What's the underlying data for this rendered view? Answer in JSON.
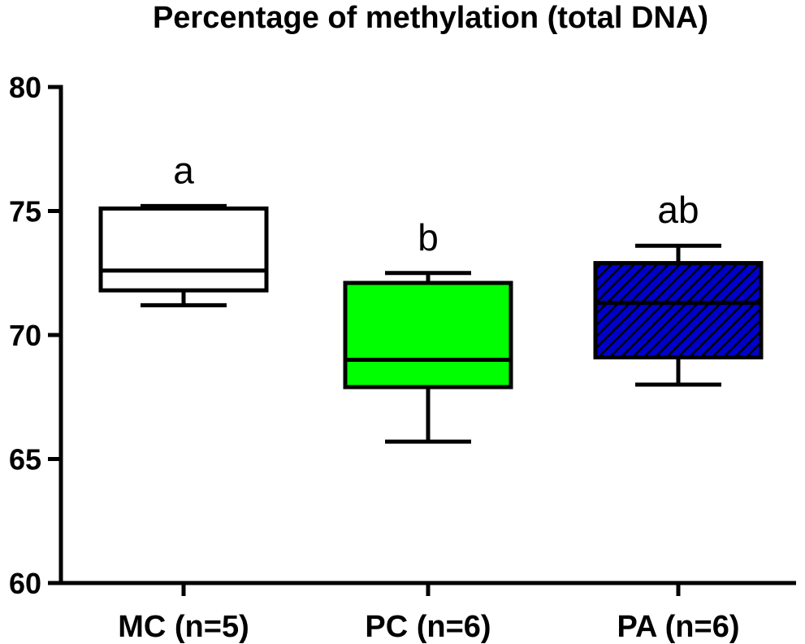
{
  "chart_data": {
    "type": "box",
    "title": "Percentage of methylation (total DNA)",
    "xlabel": "",
    "ylabel": "",
    "ylim": [
      60,
      80
    ],
    "yticks": [
      60,
      65,
      70,
      75,
      80
    ],
    "grid": false,
    "categories": [
      "MC (n=5)",
      "PC (n=6)",
      "PA (n=6)"
    ],
    "boxes": [
      {
        "category": "MC (n=5)",
        "min": 71.2,
        "q1": 71.8,
        "median": 72.6,
        "q3": 75.1,
        "max": 75.2,
        "fill": "#ffffff",
        "pattern": "none",
        "annotation": "a"
      },
      {
        "category": "PC (n=6)",
        "min": 65.7,
        "q1": 67.9,
        "median": 69.0,
        "q3": 72.1,
        "max": 72.5,
        "fill": "#00ff00",
        "pattern": "none",
        "annotation": "b"
      },
      {
        "category": "PA (n=6)",
        "min": 68.0,
        "q1": 69.1,
        "median": 71.3,
        "q3": 72.9,
        "max": 73.6,
        "fill": "#0000cc",
        "pattern": "diagonal-hatch",
        "annotation": "ab"
      }
    ]
  }
}
